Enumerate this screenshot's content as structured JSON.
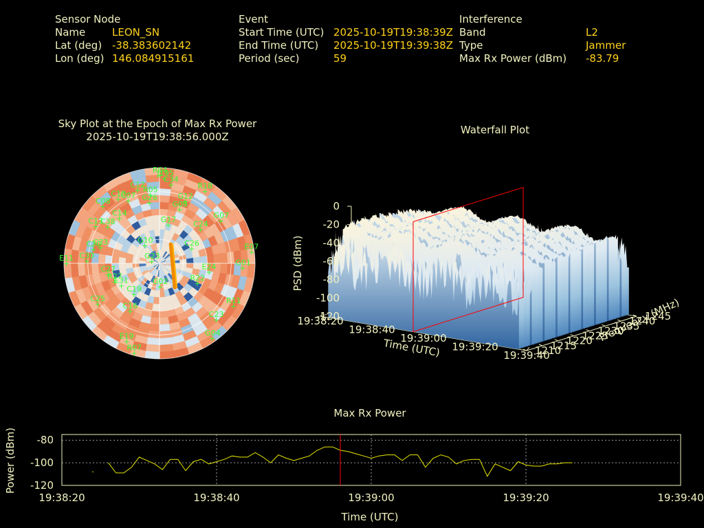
{
  "header": {
    "sensor": {
      "section_label": "Sensor Node",
      "name_label": "Name",
      "name_value": "LEON_SN",
      "lat_label": "Lat (deg)",
      "lat_value": "-38.383602142",
      "lon_label": "Lon (deg)",
      "lon_value": "146.084915161"
    },
    "event": {
      "section_label": "Event",
      "start_label": "Start Time (UTC)",
      "start_value": "2025-10-19T19:38:39Z",
      "end_label": "End Time (UTC)",
      "end_value": "2025-10-19T19:39:38Z",
      "period_label": "Period (sec)",
      "period_value": "59"
    },
    "interference": {
      "section_label": "Interference",
      "band_label": "Band",
      "band_value": "L2",
      "type_label": "Type",
      "type_value": "Jammer",
      "power_label": "Max Rx Power (dBm)",
      "power_value": "-83.79"
    }
  },
  "chart_data": [
    {
      "type": "scatter",
      "title": "Sky Plot at the Epoch of Max Rx Power",
      "subtitle": "2025-10-19T19:38:56.000Z",
      "satellites": [
        {
          "id": "R04",
          "az": 0,
          "el": 83
        },
        {
          "id": "J195",
          "az": 3,
          "el": 80
        },
        {
          "id": "C34",
          "az": 8,
          "el": 75
        },
        {
          "id": "C12",
          "az": 343,
          "el": 72
        },
        {
          "id": "C10",
          "az": 327,
          "el": 72
        },
        {
          "id": "C07",
          "az": 333,
          "el": 66
        },
        {
          "id": "C08",
          "az": 315,
          "el": 76
        },
        {
          "id": "R05",
          "az": 352,
          "el": 65
        },
        {
          "id": "G26",
          "az": 350,
          "el": 58
        },
        {
          "id": "R18",
          "az": 32,
          "el": 80
        },
        {
          "id": "G12",
          "az": 22,
          "el": 63
        },
        {
          "id": "G08",
          "az": 20,
          "el": 54
        },
        {
          "id": "C13",
          "az": 300,
          "el": 70
        },
        {
          "id": "C14",
          "az": 318,
          "el": 57
        },
        {
          "id": "C38",
          "az": 305,
          "el": 60
        },
        {
          "id": "C20",
          "az": 282,
          "el": 64
        },
        {
          "id": "C30",
          "az": 272,
          "el": 69
        },
        {
          "id": "C33",
          "az": 285,
          "el": 58
        },
        {
          "id": "G07",
          "az": 55,
          "el": 70
        },
        {
          "id": "G17",
          "az": 12,
          "el": 37
        },
        {
          "id": "C24",
          "az": 50,
          "el": 50
        },
        {
          "id": "E11",
          "az": 270,
          "el": 88
        },
        {
          "id": "G10",
          "az": 320,
          "el": 22
        },
        {
          "id": "C26",
          "az": 65,
          "el": 33
        },
        {
          "id": "C27",
          "az": 258,
          "el": 50
        },
        {
          "id": "R27",
          "az": 248,
          "el": 46
        },
        {
          "id": "E07",
          "az": 83,
          "el": 87
        },
        {
          "id": "G01",
          "az": 93,
          "el": 78
        },
        {
          "id": "R11",
          "az": 120,
          "el": 80
        },
        {
          "id": "E24",
          "az": 100,
          "el": 47
        },
        {
          "id": "R22",
          "az": 118,
          "el": 40
        },
        {
          "id": "G23",
          "az": 285,
          "el": 8
        },
        {
          "id": "E31",
          "az": 240,
          "el": 42
        },
        {
          "id": "C19",
          "az": 220,
          "el": 38
        },
        {
          "id": "C16",
          "az": 212,
          "el": 53
        },
        {
          "id": "C25",
          "az": 237,
          "el": 70
        },
        {
          "id": "E19",
          "az": 203,
          "el": 80
        },
        {
          "id": "R07",
          "az": 196,
          "el": 88
        },
        {
          "id": "G02",
          "az": 180,
          "el": 22
        },
        {
          "id": "C23",
          "az": 135,
          "el": 75
        },
        {
          "id": "G04",
          "az": 145,
          "el": 86
        }
      ]
    },
    {
      "type": "area",
      "title": "Waterfall Plot",
      "xlabel": "Time (UTC)",
      "ylabel": "Frequency (MHz)",
      "zlabel": "PSD (dBm)",
      "time_ticks": [
        "19:38:20",
        "19:38:40",
        "19:39:00",
        "19:39:20",
        "19:39:40"
      ],
      "freq_ticks": [
        "1210",
        "1215",
        "1220",
        "1225",
        "1230",
        "1235",
        "1240",
        "1245"
      ],
      "psd_ticks": [
        "0",
        "-20",
        "-40",
        "-60",
        "-80",
        "-100",
        "-120"
      ],
      "zlim": [
        -120,
        0
      ],
      "marker_time": "19:38:56"
    },
    {
      "type": "line",
      "title": "Max Rx Power",
      "xlabel": "Time (UTC)",
      "ylabel": "Power (dBm)",
      "x_ticks": [
        "19:38:20",
        "19:38:40",
        "19:39:00",
        "19:39:20",
        "19:39:40"
      ],
      "y_ticks": [
        "-80",
        "-100",
        "-120"
      ],
      "ylim": [
        -120,
        -75
      ],
      "marker_time_sec": 36,
      "series": [
        {
          "color": "#e8e800",
          "t_sec": [
            6,
            7,
            8,
            9,
            10,
            11,
            12,
            13,
            14,
            15,
            16,
            17,
            18,
            19,
            20,
            21,
            22,
            23,
            24,
            25,
            26,
            27,
            28,
            29,
            30,
            31,
            32,
            33,
            34,
            35,
            36,
            37,
            38,
            39,
            40,
            41,
            42,
            43,
            44,
            45,
            46,
            47,
            48,
            49,
            50,
            51,
            52,
            53,
            54,
            55,
            56,
            57,
            58,
            59,
            60,
            61,
            62,
            63,
            64,
            65,
            66
          ],
          "values": [
            -100,
            -109,
            -109,
            -104,
            -95,
            -98,
            -101,
            -106,
            -97,
            -97,
            -107,
            -99,
            -97,
            -101,
            -99,
            -97,
            -94,
            -95,
            -95,
            -91,
            -95,
            -100,
            -93,
            -96,
            -98,
            -96,
            -94,
            -89,
            -86,
            -86,
            -89,
            -90,
            -92,
            -94,
            -96,
            -94,
            -93,
            -93,
            -98,
            -93,
            -93,
            -104,
            -96,
            -93,
            -95,
            -101,
            -98,
            -97,
            -97,
            -112,
            -101,
            -104,
            -107,
            -99,
            -102,
            -103,
            -103,
            -101,
            -101,
            -100,
            -100
          ]
        }
      ]
    }
  ],
  "colors": {
    "label": "#f2f2c0",
    "value": "#ffd21c",
    "sat": "#33ff33",
    "marker": "#ff0000",
    "trace": "#e8e800"
  }
}
